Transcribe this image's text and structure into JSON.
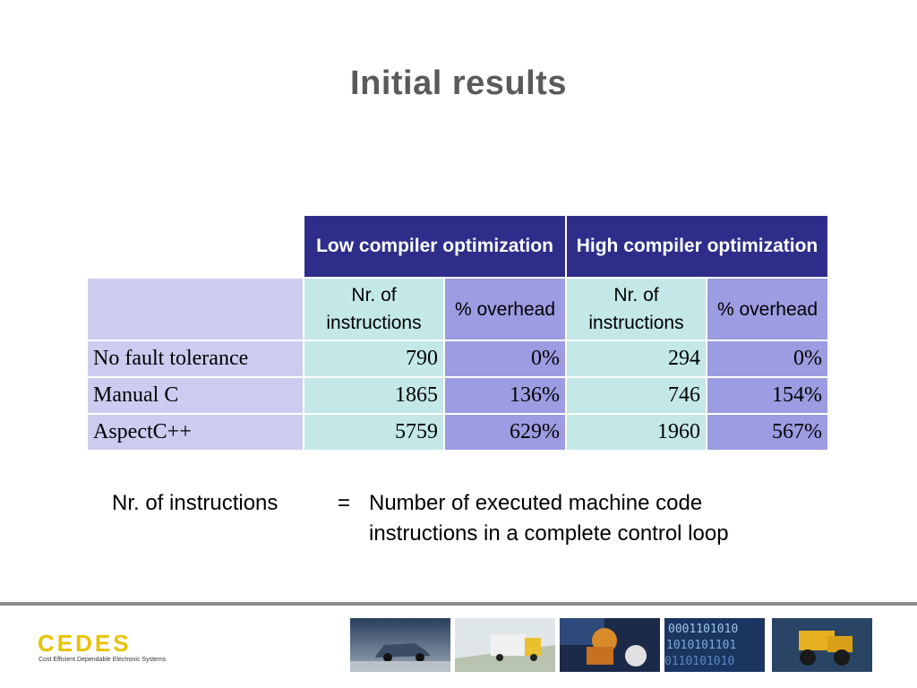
{
  "slide": {
    "title": "Initial results"
  },
  "table": {
    "headers": {
      "low": "Low compiler optimization",
      "high": "High compiler optimization"
    },
    "subheaders": [
      "Nr. of instructions",
      "% overhead",
      "Nr. of instructions",
      "% overhead"
    ],
    "rows": [
      {
        "label": "No fault tolerance",
        "values": [
          "790",
          "0%",
          "294",
          "0%"
        ]
      },
      {
        "label": "Manual C",
        "values": [
          "1865",
          "136%",
          "746",
          "154%"
        ]
      },
      {
        "label": "AspectC++",
        "values": [
          "5759",
          "629%",
          "1960",
          "567%"
        ]
      }
    ]
  },
  "legend": {
    "term": "Nr. of instructions",
    "equals": "=",
    "definition_line1": "Number of executed machine code",
    "definition_line2": "instructions in a complete control loop"
  },
  "footer": {
    "logo_text": "CEDES",
    "logo_subtitle": "Cost Efficient Dependable Electronic Systems",
    "thumbnails": [
      "car-photo",
      "truck-photo",
      "robot-photo",
      "binary-code-photo",
      "construction-vehicle-photo"
    ]
  }
}
